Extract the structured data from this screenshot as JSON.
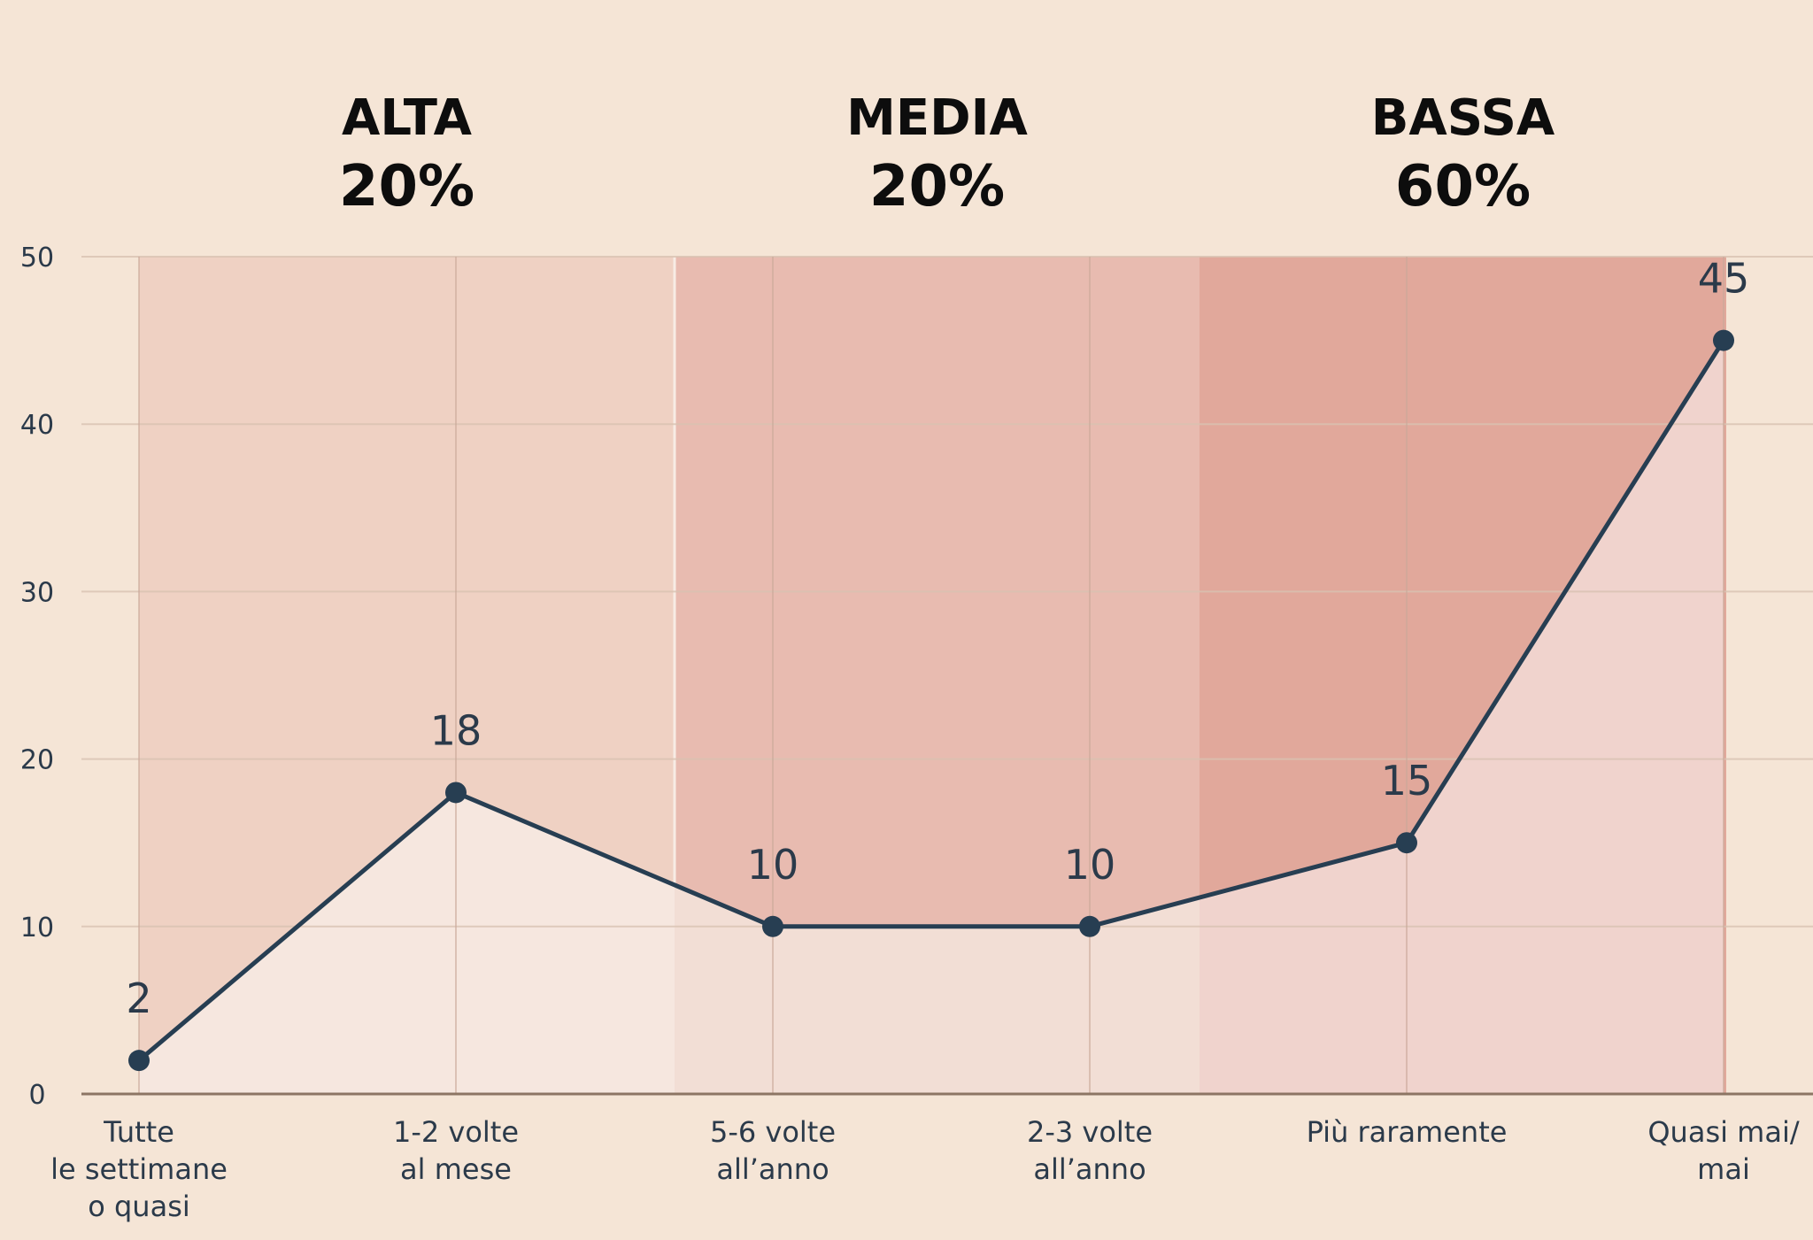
{
  "chart_data": {
    "type": "line",
    "categories": [
      [
        "Tutte",
        "le settimane",
        "o quasi"
      ],
      [
        "1-2 volte",
        "al mese"
      ],
      [
        "5-6 volte",
        "all’anno"
      ],
      [
        "2-3 volte",
        "all’anno"
      ],
      [
        "Più raramente"
      ],
      [
        "Quasi mai/",
        "mai"
      ]
    ],
    "values": [
      2,
      18,
      10,
      10,
      15,
      45
    ],
    "data_labels": [
      "2",
      "18",
      "10",
      "10",
      "15",
      "45"
    ],
    "ylim": [
      0,
      50
    ],
    "yticks": [
      0,
      10,
      20,
      30,
      40,
      50
    ],
    "ytick_labels": [
      "0",
      "10",
      "20",
      "30",
      "40",
      "50"
    ],
    "grid": true,
    "bands": [
      {
        "title": "ALTA",
        "percent": "20%",
        "color": "#efd1c3",
        "lower_color": "#f6e7df"
      },
      {
        "title": "MEDIA",
        "percent": "20%",
        "color": "#e8bbb0",
        "lower_color": "#f2ded5"
      },
      {
        "title": "BASSA",
        "percent": "60%",
        "color": "#e1a89b",
        "lower_color": "#f0d3cd"
      }
    ],
    "colors": {
      "background": "#f5e5d6",
      "line": "#273e52",
      "grid": "#d8c2b2",
      "axis": "#8c7564",
      "text": "#2b3a4a",
      "title": "#0d0d0d"
    }
  }
}
